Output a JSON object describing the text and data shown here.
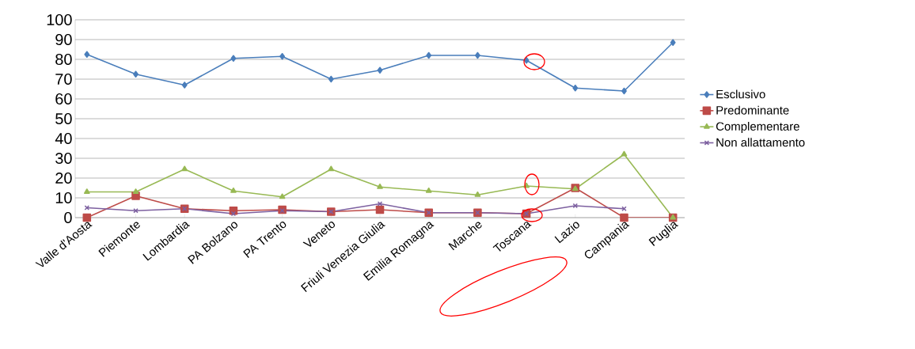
{
  "chart_data": {
    "type": "line",
    "categories": [
      "Valle d'Aosta",
      "Piemonte",
      "Lombardia",
      "PA Bolzano",
      "PA Trento",
      "Veneto",
      "Friuli Venezia Giulia",
      "Emilia Romagna",
      "Marche",
      "Toscana",
      "Lazio",
      "Campania",
      "Puglia"
    ],
    "series": [
      {
        "name": "Esclusivo",
        "color": "#4a7ebb",
        "marker": "diamond",
        "values": [
          82.5,
          72.5,
          67,
          80.5,
          81.5,
          70,
          74.5,
          82,
          82,
          79.5,
          65.5,
          64,
          88.5
        ]
      },
      {
        "name": "Predominante",
        "color": "#be4b48",
        "marker": "square",
        "values": [
          0,
          11,
          4.5,
          3.5,
          4,
          3,
          4,
          2.5,
          2.5,
          2,
          15,
          0,
          0
        ]
      },
      {
        "name": "Complementare",
        "color": "#98b954",
        "marker": "triangle",
        "values": [
          13,
          13,
          24.5,
          13.5,
          10.5,
          24.5,
          15.5,
          13.5,
          11.5,
          16,
          14.5,
          32,
          0
        ]
      },
      {
        "name": "Non allattamento",
        "color": "#7d60a0",
        "marker": "cross",
        "values": [
          5,
          3.5,
          4.5,
          2,
          3.5,
          3,
          7,
          2.5,
          2.5,
          2,
          6,
          4.5,
          null
        ]
      }
    ],
    "ylim": [
      0,
      100
    ],
    "yticks": [
      0,
      10,
      20,
      30,
      40,
      50,
      60,
      70,
      80,
      90,
      100
    ],
    "grid": "y",
    "legend": "right"
  }
}
